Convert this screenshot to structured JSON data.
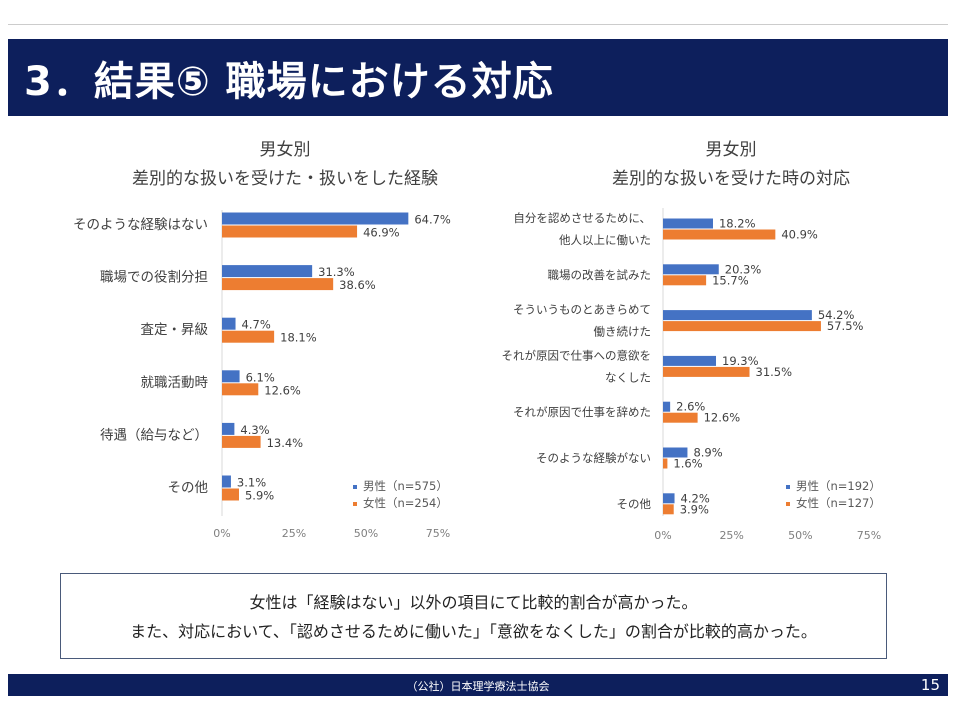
{
  "slide": {
    "title": "3．結果⑤ 職場における対応",
    "footer": "（公社）日本理学療法士協会",
    "page_number": "15"
  },
  "summary": {
    "line1": "女性は「経験はない」以外の項目にて比較的割合が高かった。",
    "line2": "また、対応において、「認めさせるために働いた」「意欲をなくした」の割合が比較的高かった。"
  },
  "colors": {
    "male": "#4472c4",
    "female": "#ed7d31",
    "title_bg": "#0d1f5c"
  },
  "chart_data": [
    {
      "type": "bar",
      "orientation": "horizontal",
      "title_line1": "男女別",
      "title_line2": "差別的な扱いを受けた・扱いをした経験",
      "categories": [
        "そのような経験はない",
        "職場での役割分担",
        "査定・昇級",
        "就職活動時",
        "待遇（給与など）",
        "その他"
      ],
      "series": [
        {
          "name": "男性（n=575）",
          "values": [
            64.7,
            31.3,
            4.7,
            6.1,
            4.3,
            3.1
          ]
        },
        {
          "name": "女性（n=254）",
          "values": [
            46.9,
            38.6,
            18.1,
            12.6,
            13.4,
            5.9
          ]
        }
      ],
      "value_labels": [
        [
          "64.7%",
          "31.3%",
          "4.7%",
          "6.1%",
          "4.3%",
          "3.1%"
        ],
        [
          "46.9%",
          "38.6%",
          "18.1%",
          "12.6%",
          "13.4%",
          "5.9%"
        ]
      ],
      "xticks": [
        "0%",
        "25%",
        "50%",
        "75%"
      ],
      "xlim": [
        0,
        75
      ],
      "legend_position": "bottom-right",
      "grid": false
    },
    {
      "type": "bar",
      "orientation": "horizontal",
      "title_line1": "男女別",
      "title_line2": "差別的な扱いを受けた時の対応",
      "categories": [
        [
          "自分を認めさせるために、",
          "他人以上に働いた"
        ],
        [
          "職場の改善を試みた"
        ],
        [
          "そういうものとあきらめて",
          "働き続けた"
        ],
        [
          "それが原因で仕事への意欲を",
          "なくした"
        ],
        [
          "それが原因で仕事を辞めた"
        ],
        [
          "そのような経験がない"
        ],
        [
          "その他"
        ]
      ],
      "series": [
        {
          "name": "男性（n=192）",
          "values": [
            18.2,
            20.3,
            54.2,
            19.3,
            2.6,
            8.9,
            4.2
          ]
        },
        {
          "name": "女性（n=127）",
          "values": [
            40.9,
            15.7,
            57.5,
            31.5,
            12.6,
            1.6,
            3.9
          ]
        }
      ],
      "value_labels": [
        [
          "18.2%",
          "20.3%",
          "54.2%",
          "19.3%",
          "2.6%",
          "8.9%",
          "4.2%"
        ],
        [
          "40.9%",
          "15.7%",
          "57.5%",
          "31.5%",
          "12.6%",
          "1.6%",
          "3.9%"
        ]
      ],
      "xticks": [
        "0%",
        "25%",
        "50%",
        "75%"
      ],
      "xlim": [
        0,
        75
      ],
      "legend_position": "bottom-right",
      "grid": false
    }
  ]
}
